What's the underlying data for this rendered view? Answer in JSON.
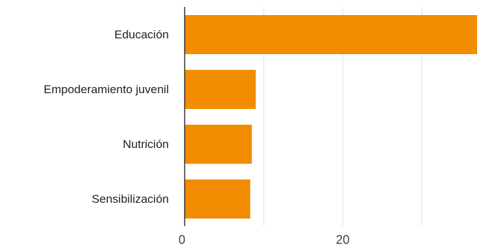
{
  "chart_data": {
    "type": "bar",
    "orientation": "horizontal",
    "categories": [
      "Educación",
      "Empoderamiento juvenil",
      "Nutrición",
      "Sensibilización"
    ],
    "values": [
      37,
      9,
      8.5,
      8.3
    ],
    "xlim": [
      0,
      37
    ],
    "xticks": [
      0,
      10,
      20,
      30
    ],
    "xtick_labels": [
      "0",
      "",
      "20",
      ""
    ],
    "grid": true,
    "bar_color": "#f28c00",
    "grid_color": "#e0e0e0",
    "axis_color": "#333333"
  }
}
